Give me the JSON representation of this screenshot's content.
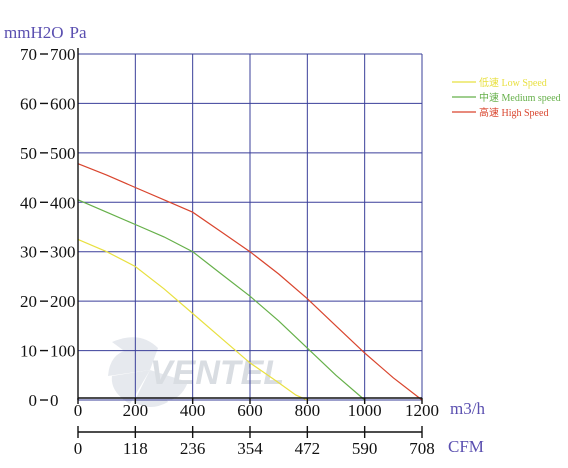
{
  "chart_data": {
    "type": "line",
    "units": {
      "pressure_mm": "mmH2O",
      "pressure_pa": "Pa",
      "flow_m3h": "m3/h",
      "flow_cfm": "CFM"
    },
    "y_left_ticks": [
      "0",
      "10",
      "20",
      "30",
      "40",
      "50",
      "60",
      "70"
    ],
    "y_right_ticks": [
      "0",
      "100",
      "200",
      "300",
      "400",
      "500",
      "600",
      "700"
    ],
    "x_m3h_ticks": [
      "0",
      "200",
      "400",
      "600",
      "800",
      "1000",
      "1200"
    ],
    "x_cfm_ticks": [
      "0",
      "118",
      "236",
      "354",
      "472",
      "590",
      "708"
    ],
    "xlim": [
      0,
      1200
    ],
    "ylim": [
      0,
      700
    ],
    "grid": true,
    "legend_position": "top-right",
    "series": [
      {
        "name": "低速 Low Speed",
        "color": "#e8e040",
        "x": [
          0,
          100,
          200,
          300,
          400,
          500,
          600,
          700,
          760,
          800
        ],
        "y": [
          325,
          300,
          270,
          225,
          175,
          125,
          75,
          35,
          10,
          0
        ]
      },
      {
        "name": "中速 Medium speed",
        "color": "#66b04a",
        "x": [
          0,
          100,
          200,
          300,
          400,
          500,
          600,
          700,
          800,
          900,
          1000
        ],
        "y": [
          405,
          380,
          355,
          330,
          300,
          255,
          210,
          160,
          105,
          50,
          0
        ]
      },
      {
        "name": "高速 High Speed",
        "color": "#d9452e",
        "x": [
          0,
          100,
          200,
          300,
          400,
          500,
          600,
          700,
          800,
          900,
          1000,
          1100,
          1200
        ],
        "y": [
          478,
          455,
          430,
          405,
          380,
          340,
          300,
          255,
          205,
          150,
          95,
          45,
          0
        ]
      }
    ]
  },
  "watermark": {
    "text": "VENTEL",
    "icon": "fan-icon",
    "color": "#d9dde2"
  }
}
